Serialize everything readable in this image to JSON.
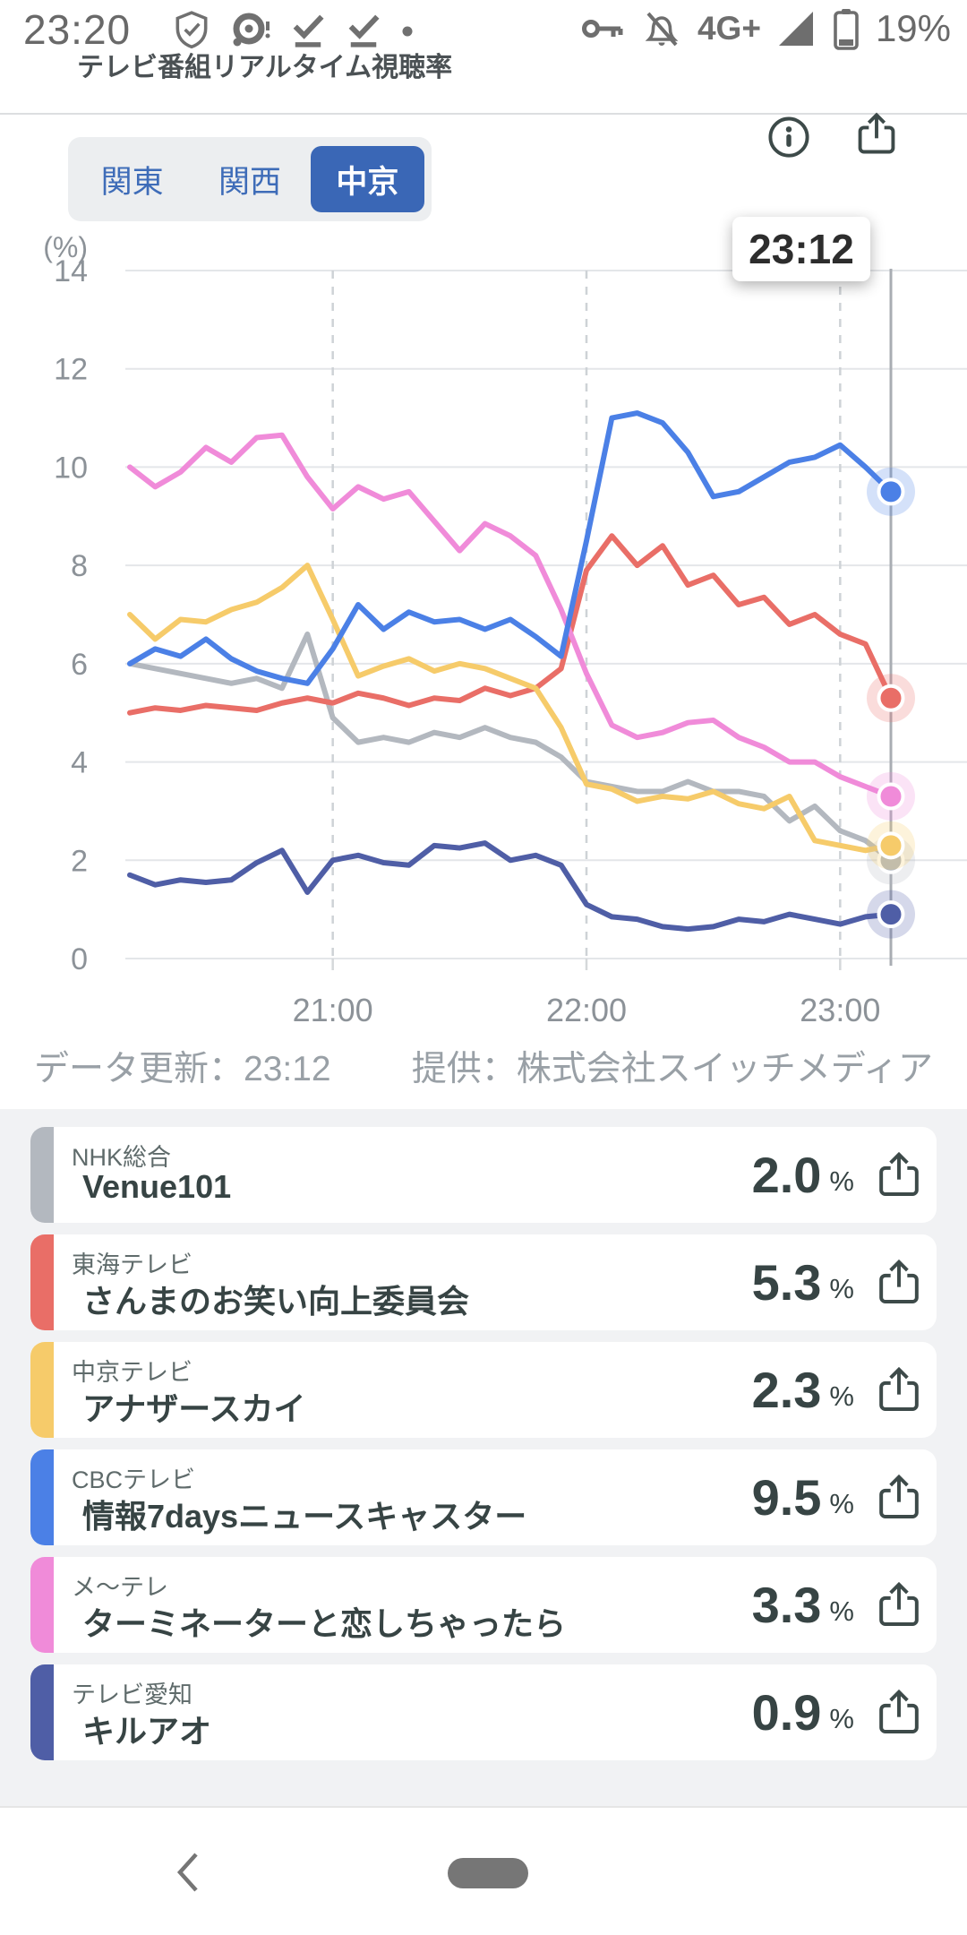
{
  "status_bar": {
    "time": "23:20",
    "network": "4G+",
    "battery": "19%"
  },
  "header": {
    "title": "テレビ番組リアルタイム視聴率"
  },
  "toolbar": {
    "tabs": [
      {
        "label": "関東",
        "selected": false
      },
      {
        "label": "関西",
        "selected": false
      },
      {
        "label": "中京",
        "selected": true
      }
    ]
  },
  "tooltip": {
    "time": "23:12"
  },
  "chart_data": {
    "type": "line",
    "title": "テレビ番組リアルタイム視聴率（中京）",
    "ylabel": "(%)",
    "ylim": [
      0,
      14
    ],
    "y_ticks": [
      0,
      2,
      4,
      6,
      8,
      10,
      12,
      14
    ],
    "x_ticks": [
      "21:00",
      "22:00",
      "23:00"
    ],
    "grid": true,
    "legend_position": "none",
    "current_time": "23:12",
    "x": [
      "20:12",
      "20:18",
      "20:24",
      "20:30",
      "20:36",
      "20:42",
      "20:48",
      "20:54",
      "21:00",
      "21:06",
      "21:12",
      "21:18",
      "21:24",
      "21:30",
      "21:36",
      "21:42",
      "21:48",
      "21:54",
      "22:00",
      "22:06",
      "22:12",
      "22:18",
      "22:24",
      "22:30",
      "22:36",
      "22:42",
      "22:48",
      "22:54",
      "23:00",
      "23:06",
      "23:12"
    ],
    "series": [
      {
        "name": "NHK総合 Venue101",
        "color": "#b3b8bf",
        "values": [
          6.0,
          5.9,
          5.8,
          5.7,
          5.6,
          5.7,
          5.5,
          6.6,
          4.9,
          4.4,
          4.5,
          4.4,
          4.6,
          4.5,
          4.7,
          4.5,
          4.4,
          4.1,
          3.6,
          3.5,
          3.4,
          3.4,
          3.6,
          3.4,
          3.4,
          3.3,
          2.8,
          3.1,
          2.6,
          2.4,
          2.0
        ],
        "last": 2.0
      },
      {
        "name": "東海テレビ さんまのお笑い向上委員会",
        "color": "#e96e67",
        "values": [
          5.0,
          5.1,
          5.05,
          5.15,
          5.1,
          5.05,
          5.2,
          5.3,
          5.2,
          5.4,
          5.3,
          5.15,
          5.3,
          5.25,
          5.5,
          5.35,
          5.5,
          5.9,
          7.9,
          8.6,
          8.0,
          8.4,
          7.6,
          7.8,
          7.2,
          7.35,
          6.8,
          7.0,
          6.6,
          6.4,
          5.3
        ],
        "last": 5.3
      },
      {
        "name": "中京テレビ アナザースカイ",
        "color": "#f6cb6a",
        "values": [
          7.0,
          6.5,
          6.9,
          6.85,
          7.1,
          7.25,
          7.55,
          8.0,
          6.9,
          5.75,
          5.95,
          6.1,
          5.85,
          6.0,
          5.9,
          5.7,
          5.5,
          4.7,
          3.55,
          3.45,
          3.2,
          3.3,
          3.25,
          3.4,
          3.15,
          3.05,
          3.3,
          2.4,
          2.3,
          2.2,
          2.3
        ],
        "last": 2.3
      },
      {
        "name": "メ〜テレ ターミネーターと恋しちゃったら",
        "color": "#f08bd9",
        "values": [
          10.0,
          9.6,
          9.9,
          10.4,
          10.1,
          10.6,
          10.65,
          9.8,
          9.15,
          9.6,
          9.35,
          9.5,
          8.9,
          8.3,
          8.85,
          8.6,
          8.2,
          7.1,
          5.8,
          4.75,
          4.5,
          4.6,
          4.8,
          4.85,
          4.5,
          4.3,
          4.0,
          4.0,
          3.7,
          3.5,
          3.3
        ],
        "last": 3.3
      },
      {
        "name": "テレビ愛知 キルアオ",
        "color": "#4f5ea6",
        "values": [
          1.7,
          1.5,
          1.6,
          1.55,
          1.6,
          1.95,
          2.2,
          1.35,
          2.0,
          2.1,
          1.95,
          1.9,
          2.3,
          2.25,
          2.35,
          2.0,
          2.1,
          1.9,
          1.1,
          0.85,
          0.8,
          0.65,
          0.6,
          0.65,
          0.8,
          0.75,
          0.9,
          0.8,
          0.7,
          0.85,
          0.9
        ],
        "last": 0.9
      },
      {
        "name": "CBCテレビ 情報7daysニュースキャスター",
        "color": "#4b80e6",
        "values": [
          6.0,
          6.3,
          6.15,
          6.5,
          6.1,
          5.85,
          5.7,
          5.6,
          6.3,
          7.2,
          6.7,
          7.05,
          6.85,
          6.9,
          6.7,
          6.9,
          6.55,
          6.15,
          8.5,
          11.0,
          11.1,
          10.9,
          10.3,
          9.4,
          9.5,
          9.8,
          10.1,
          10.2,
          10.45,
          10.0,
          9.5
        ],
        "last": 9.5
      }
    ]
  },
  "footer": {
    "updated": "データ更新：23:12",
    "provider": "提供：株式会社スイッチメディア"
  },
  "rows": [
    {
      "channel": "NHK総合",
      "program": "Venue101",
      "rating": "2.0",
      "unit": "%",
      "color": "#b3b8bf"
    },
    {
      "channel": "東海テレビ",
      "program": "さんまのお笑い向上委員会",
      "rating": "5.3",
      "unit": "%",
      "color": "#e96e67"
    },
    {
      "channel": "中京テレビ",
      "program": "アナザースカイ",
      "rating": "2.3",
      "unit": "%",
      "color": "#f6cb6a"
    },
    {
      "channel": "CBCテレビ",
      "program": "情報7daysニュースキャスター",
      "rating": "9.5",
      "unit": "%",
      "color": "#4b80e6"
    },
    {
      "channel": "メ〜テレ",
      "program": "ターミネーターと恋しちゃったら",
      "rating": "3.3",
      "unit": "%",
      "color": "#f08bd9"
    },
    {
      "channel": "テレビ愛知",
      "program": "キルアオ",
      "rating": "0.9",
      "unit": "%",
      "color": "#4f5ea6"
    }
  ]
}
